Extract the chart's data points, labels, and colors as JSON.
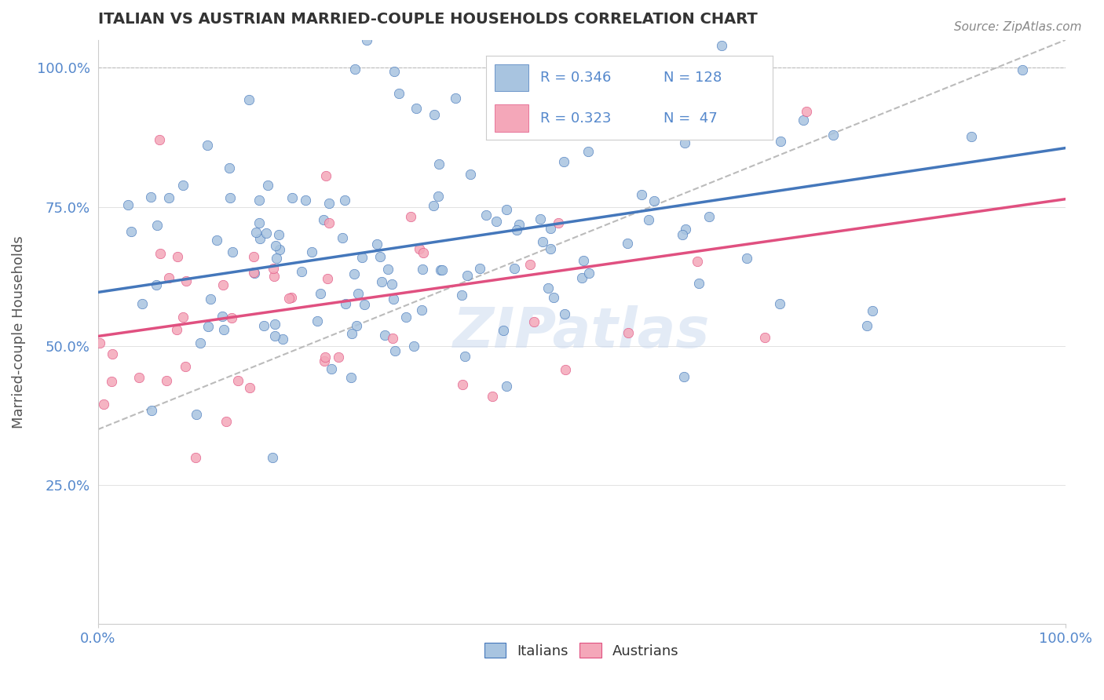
{
  "title": "ITALIAN VS AUSTRIAN MARRIED-COUPLE HOUSEHOLDS CORRELATION CHART",
  "source_text": "Source: ZipAtlas.com",
  "xlabel": "",
  "ylabel": "Married-couple Households",
  "xmin": 0.0,
  "xmax": 1.0,
  "ymin": 0.0,
  "ymax": 1.05,
  "italian_color": "#a8c4e0",
  "austrian_color": "#f4a7b9",
  "trend_italian_color": "#4477bb",
  "trend_austrian_color": "#e05080",
  "trend_dashed_color": "#bbbbbb",
  "title_color": "#333333",
  "axis_label_color": "#5588cc",
  "legend_r_italian": "R = 0.346",
  "legend_n_italian": "N = 128",
  "legend_r_austrian": "R = 0.323",
  "legend_n_austrian": "N =  47",
  "watermark_text": "ZIPatlas",
  "background_color": "#ffffff",
  "italian_n": 128,
  "austrian_n": 47,
  "italian_r": 0.346,
  "austrian_r": 0.323,
  "yticks": [
    0.0,
    0.25,
    0.5,
    0.75,
    1.0
  ],
  "ytick_labels": [
    "",
    "25.0%",
    "50.0%",
    "75.0%",
    "100.0%"
  ],
  "xtick_labels": [
    "0.0%",
    "100.0%"
  ]
}
